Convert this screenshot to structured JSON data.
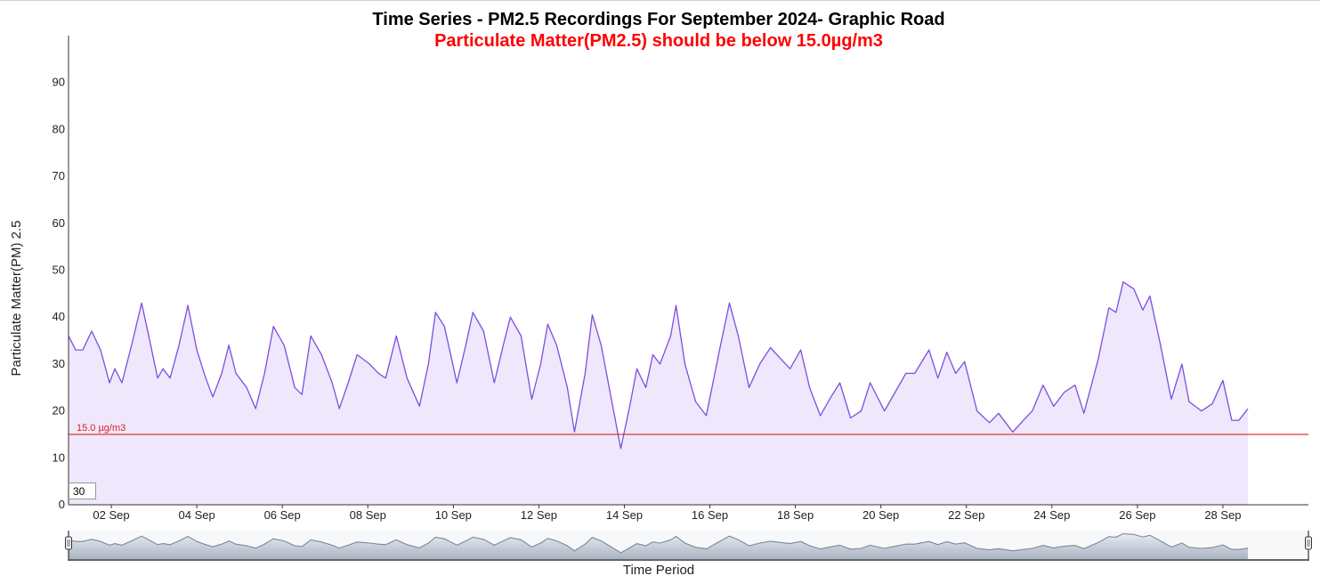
{
  "chart_data": {
    "type": "area",
    "title": "Time Series - PM2.5 Recordings For September 2024- Graphic Road",
    "subtitle": "Particulate Matter(PM2.5) should be below 15.0µg/m3",
    "xlabel": "Time Period",
    "ylabel": "Particulate Matter(PM) 2.5",
    "x_range": [
      "2024-09-01",
      "2024-09-30"
    ],
    "ylim": [
      0,
      100
    ],
    "y_ticks": [
      0,
      10,
      20,
      30,
      40,
      50,
      60,
      70,
      80,
      90
    ],
    "x_tick_labels": [
      "02 Sep",
      "04 Sep",
      "06 Sep",
      "08 Sep",
      "10 Sep",
      "12 Sep",
      "14 Sep",
      "16 Sep",
      "18 Sep",
      "20 Sep",
      "22 Sep",
      "24 Sep",
      "26 Sep",
      "28 Sep"
    ],
    "reference_line": {
      "value": 15.0,
      "label": "15.0 µg/m3",
      "color": "#dd2222"
    },
    "roll_period": "30",
    "grid": false,
    "colors": {
      "line": "#7b4fe0",
      "fill": "#efe7fb",
      "title": "#000000",
      "subtitle": "#ff0000",
      "range_fill": "#c4ccd8",
      "range_line": "#7d8797"
    },
    "series": [
      {
        "points": [
          [
            "2024-09-01 00:00",
            36
          ],
          [
            "2024-09-01 04:00",
            33
          ],
          [
            "2024-09-01 08:00",
            33
          ],
          [
            "2024-09-01 13:00",
            37
          ],
          [
            "2024-09-01 18:00",
            33
          ],
          [
            "2024-09-01 23:00",
            26
          ],
          [
            "2024-09-02 02:00",
            29
          ],
          [
            "2024-09-02 06:00",
            26
          ],
          [
            "2024-09-02 12:00",
            35
          ],
          [
            "2024-09-02 17:00",
            43
          ],
          [
            "2024-09-02 21:00",
            36
          ],
          [
            "2024-09-03 02:00",
            27
          ],
          [
            "2024-09-03 05:00",
            29
          ],
          [
            "2024-09-03 09:00",
            27
          ],
          [
            "2024-09-03 14:00",
            34
          ],
          [
            "2024-09-03 19:00",
            42.5
          ],
          [
            "2024-09-04 00:00",
            33
          ],
          [
            "2024-09-04 05:00",
            27
          ],
          [
            "2024-09-04 09:00",
            23
          ],
          [
            "2024-09-04 14:00",
            28
          ],
          [
            "2024-09-04 18:00",
            34
          ],
          [
            "2024-09-04 22:00",
            28
          ],
          [
            "2024-09-05 04:00",
            25
          ],
          [
            "2024-09-05 09:00",
            20.5
          ],
          [
            "2024-09-05 14:00",
            28
          ],
          [
            "2024-09-05 19:00",
            38
          ],
          [
            "2024-09-06 01:00",
            34
          ],
          [
            "2024-09-06 07:00",
            25
          ],
          [
            "2024-09-06 11:00",
            23.5
          ],
          [
            "2024-09-06 16:00",
            36
          ],
          [
            "2024-09-06 22:00",
            32
          ],
          [
            "2024-09-07 04:00",
            26
          ],
          [
            "2024-09-07 08:00",
            20.5
          ],
          [
            "2024-09-07 13:00",
            26
          ],
          [
            "2024-09-07 18:00",
            32
          ],
          [
            "2024-09-08 01:00",
            30
          ],
          [
            "2024-09-08 06:00",
            28
          ],
          [
            "2024-09-08 10:00",
            27
          ],
          [
            "2024-09-08 16:00",
            36
          ],
          [
            "2024-09-08 22:00",
            27
          ],
          [
            "2024-09-09 05:00",
            21
          ],
          [
            "2024-09-09 10:00",
            30
          ],
          [
            "2024-09-09 14:00",
            41
          ],
          [
            "2024-09-09 19:00",
            38
          ],
          [
            "2024-09-10 02:00",
            26
          ],
          [
            "2024-09-10 07:00",
            34
          ],
          [
            "2024-09-10 11:00",
            41
          ],
          [
            "2024-09-10 17:00",
            37
          ],
          [
            "2024-09-10 23:00",
            26
          ],
          [
            "2024-09-11 04:00",
            34
          ],
          [
            "2024-09-11 08:00",
            40
          ],
          [
            "2024-09-11 14:00",
            36
          ],
          [
            "2024-09-11 20:00",
            22.5
          ],
          [
            "2024-09-12 01:00",
            30
          ],
          [
            "2024-09-12 05:00",
            38.5
          ],
          [
            "2024-09-12 10:00",
            34
          ],
          [
            "2024-09-12 16:00",
            25
          ],
          [
            "2024-09-12 20:00",
            15.5
          ],
          [
            "2024-09-13 02:00",
            28
          ],
          [
            "2024-09-13 06:00",
            40.5
          ],
          [
            "2024-09-13 11:00",
            34
          ],
          [
            "2024-09-13 18:00",
            20
          ],
          [
            "2024-09-13 22:00",
            12
          ],
          [
            "2024-09-14 03:00",
            21
          ],
          [
            "2024-09-14 07:00",
            29
          ],
          [
            "2024-09-14 12:00",
            25
          ],
          [
            "2024-09-14 16:00",
            32
          ],
          [
            "2024-09-14 20:00",
            30
          ],
          [
            "2024-09-15 02:00",
            36
          ],
          [
            "2024-09-15 05:00",
            42.5
          ],
          [
            "2024-09-15 10:00",
            30
          ],
          [
            "2024-09-15 16:00",
            22
          ],
          [
            "2024-09-15 22:00",
            19
          ],
          [
            "2024-09-16 06:00",
            34
          ],
          [
            "2024-09-16 11:00",
            43
          ],
          [
            "2024-09-16 16:00",
            36
          ],
          [
            "2024-09-16 22:00",
            25
          ],
          [
            "2024-09-17 04:00",
            30
          ],
          [
            "2024-09-17 10:00",
            33.5
          ],
          [
            "2024-09-17 16:00",
            31
          ],
          [
            "2024-09-17 21:00",
            29
          ],
          [
            "2024-09-18 03:00",
            33
          ],
          [
            "2024-09-18 08:00",
            25
          ],
          [
            "2024-09-18 14:00",
            19
          ],
          [
            "2024-09-18 20:00",
            23
          ],
          [
            "2024-09-19 01:00",
            26
          ],
          [
            "2024-09-19 07:00",
            18.5
          ],
          [
            "2024-09-19 13:00",
            20
          ],
          [
            "2024-09-19 18:00",
            26
          ],
          [
            "2024-09-20 02:00",
            20
          ],
          [
            "2024-09-20 08:00",
            24
          ],
          [
            "2024-09-20 14:00",
            28
          ],
          [
            "2024-09-20 19:00",
            28
          ],
          [
            "2024-09-21 03:00",
            33
          ],
          [
            "2024-09-21 08:00",
            27
          ],
          [
            "2024-09-21 13:00",
            32.5
          ],
          [
            "2024-09-21 18:00",
            28
          ],
          [
            "2024-09-21 23:00",
            30.5
          ],
          [
            "2024-09-22 06:00",
            20
          ],
          [
            "2024-09-22 13:00",
            17.5
          ],
          [
            "2024-09-22 18:00",
            19.5
          ],
          [
            "2024-09-23 02:00",
            15.5
          ],
          [
            "2024-09-23 08:00",
            18
          ],
          [
            "2024-09-23 13:00",
            20
          ],
          [
            "2024-09-23 19:00",
            25.5
          ],
          [
            "2024-09-24 01:00",
            21
          ],
          [
            "2024-09-24 07:00",
            24
          ],
          [
            "2024-09-24 13:00",
            25.5
          ],
          [
            "2024-09-24 18:00",
            19.5
          ],
          [
            "2024-09-25 02:00",
            31
          ],
          [
            "2024-09-25 08:00",
            42
          ],
          [
            "2024-09-25 12:00",
            41
          ],
          [
            "2024-09-25 16:00",
            47.5
          ],
          [
            "2024-09-25 22:00",
            46
          ],
          [
            "2024-09-26 03:00",
            41.5
          ],
          [
            "2024-09-26 07:00",
            44.5
          ],
          [
            "2024-09-26 13:00",
            34
          ],
          [
            "2024-09-26 19:00",
            22.5
          ],
          [
            "2024-09-27 01:00",
            30
          ],
          [
            "2024-09-27 05:00",
            22
          ],
          [
            "2024-09-27 12:00",
            20
          ],
          [
            "2024-09-27 18:00",
            21.5
          ],
          [
            "2024-09-28 00:00",
            26.5
          ],
          [
            "2024-09-28 05:00",
            18
          ],
          [
            "2024-09-28 09:00",
            18
          ],
          [
            "2024-09-28 14:00",
            20.5
          ]
        ]
      }
    ]
  }
}
